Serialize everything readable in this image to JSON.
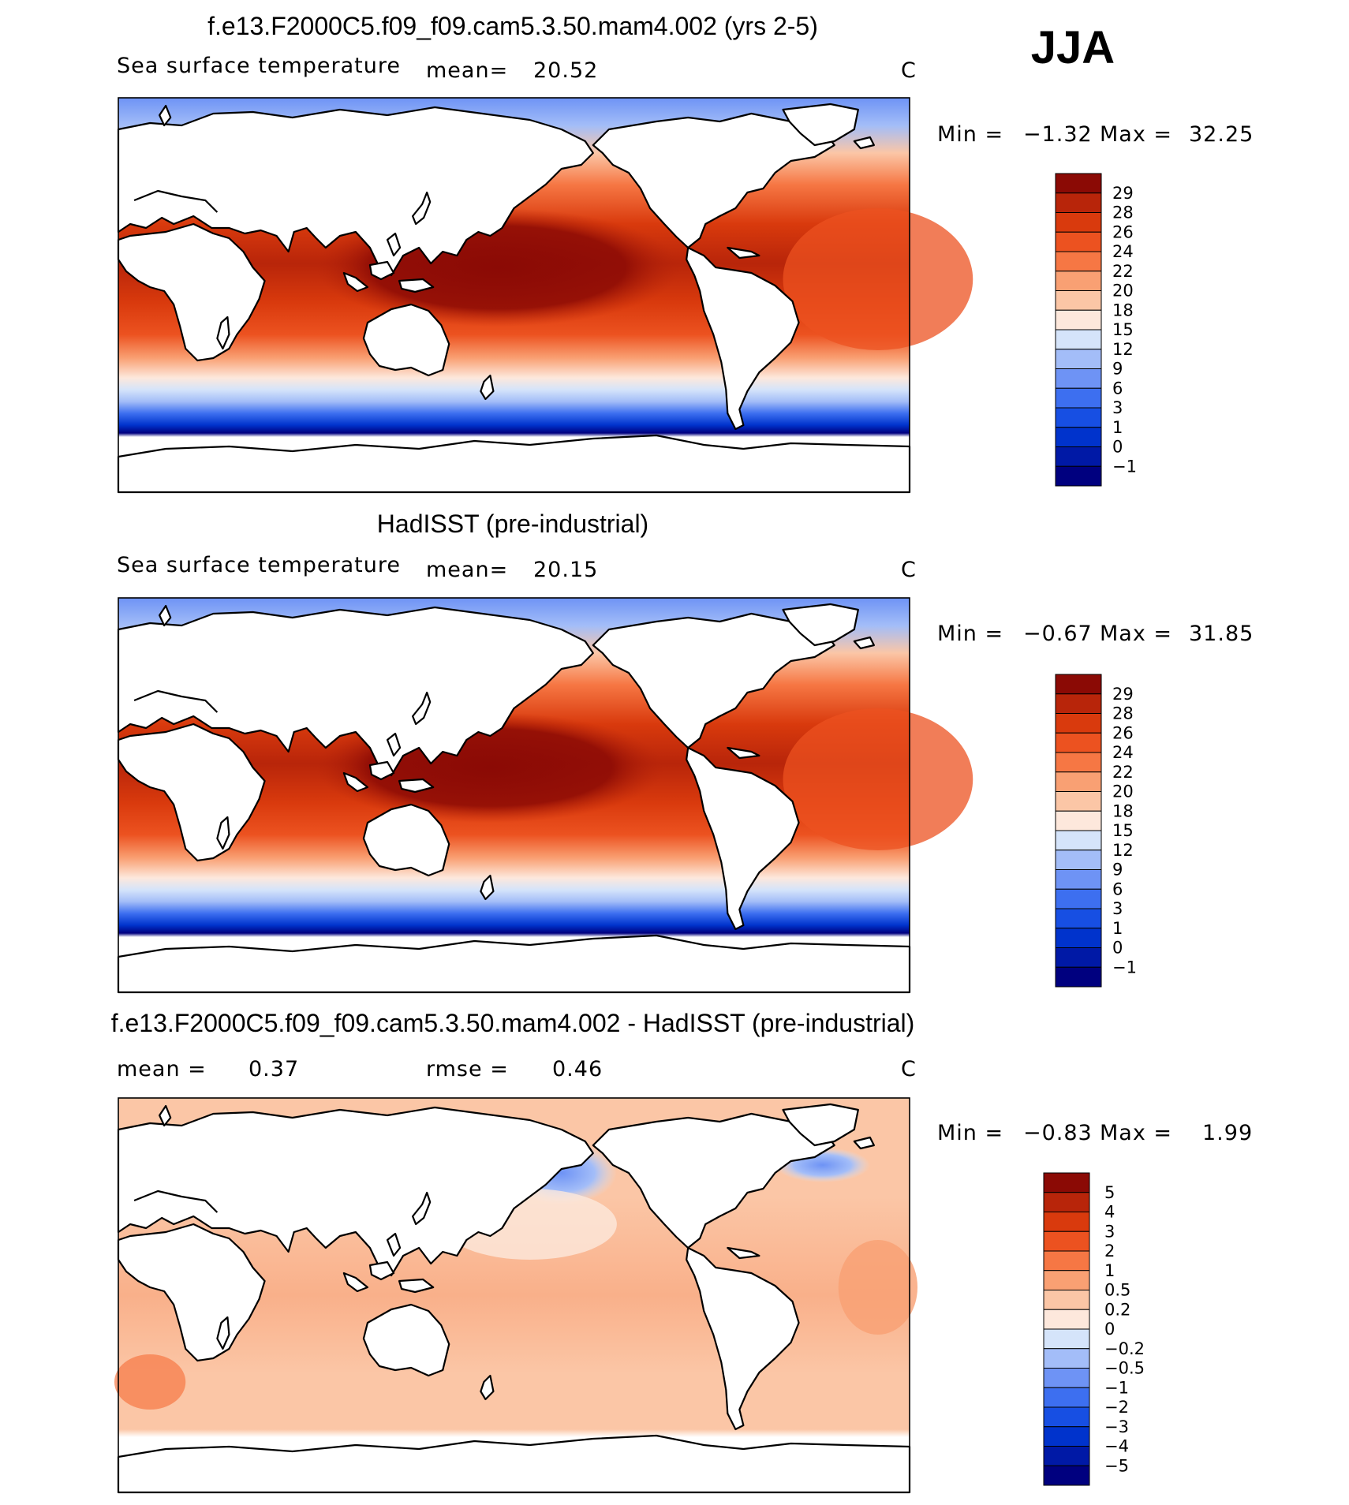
{
  "season": "JJA",
  "colors": {
    "sst_scale": [
      "#00007f",
      "#0019a6",
      "#0033cc",
      "#174fe3",
      "#3d6ff0",
      "#6e93f5",
      "#a3bdf8",
      "#d5e4fa",
      "#fde8dc",
      "#fbc6a6",
      "#f9a073",
      "#f67744",
      "#ec5220",
      "#d93a0d",
      "#b8250a",
      "#8b0a05"
    ],
    "diff_scale": [
      "#00007f",
      "#0019a6",
      "#0033cc",
      "#174fe3",
      "#3d6ff0",
      "#6e93f5",
      "#a3bdf8",
      "#d5e4fa",
      "#fde8dc",
      "#fbc6a6",
      "#f9a073",
      "#f67744",
      "#ec5220",
      "#d93a0d",
      "#b8250a",
      "#8b0a05"
    ]
  },
  "panels": [
    {
      "title": "f.e13.F2000C5.f09_f09.cam5.3.50.mam4.002 (yrs 2-5)",
      "left_label": "Sea surface temperature",
      "mean_label": "mean=",
      "mean_value": "20.52",
      "units": "C",
      "min_label": "Min =",
      "min_value": "−1.32",
      "max_label": "Max =",
      "max_value": "32.25",
      "colorbar_labels": [
        "29",
        "28",
        "26",
        "24",
        "22",
        "20",
        "18",
        "15",
        "12",
        "9",
        "6",
        "3",
        "1",
        "0",
        "−1"
      ]
    },
    {
      "title": "HadISST (pre-industrial)",
      "left_label": "Sea surface temperature",
      "mean_label": "mean=",
      "mean_value": "20.15",
      "units": "C",
      "min_label": "Min =",
      "min_value": "−0.67",
      "max_label": "Max =",
      "max_value": "31.85",
      "colorbar_labels": [
        "29",
        "28",
        "26",
        "24",
        "22",
        "20",
        "18",
        "15",
        "12",
        "9",
        "6",
        "3",
        "1",
        "0",
        "−1"
      ]
    },
    {
      "title": "f.e13.F2000C5.f09_f09.cam5.3.50.mam4.002 - HadISST (pre-industrial)",
      "mean_label": "mean =",
      "mean_value": "0.37",
      "rmse_label": "rmse =",
      "rmse_value": "0.46",
      "units": "C",
      "min_label": "Min =",
      "min_value": "−0.83",
      "max_label": "Max =",
      "max_value": "1.99",
      "colorbar_labels": [
        "5",
        "4",
        "3",
        "2",
        "1",
        "0.5",
        "0.2",
        "0",
        "−0.2",
        "−0.5",
        "−1",
        "−2",
        "−3",
        "−4",
        "−5"
      ]
    }
  ]
}
